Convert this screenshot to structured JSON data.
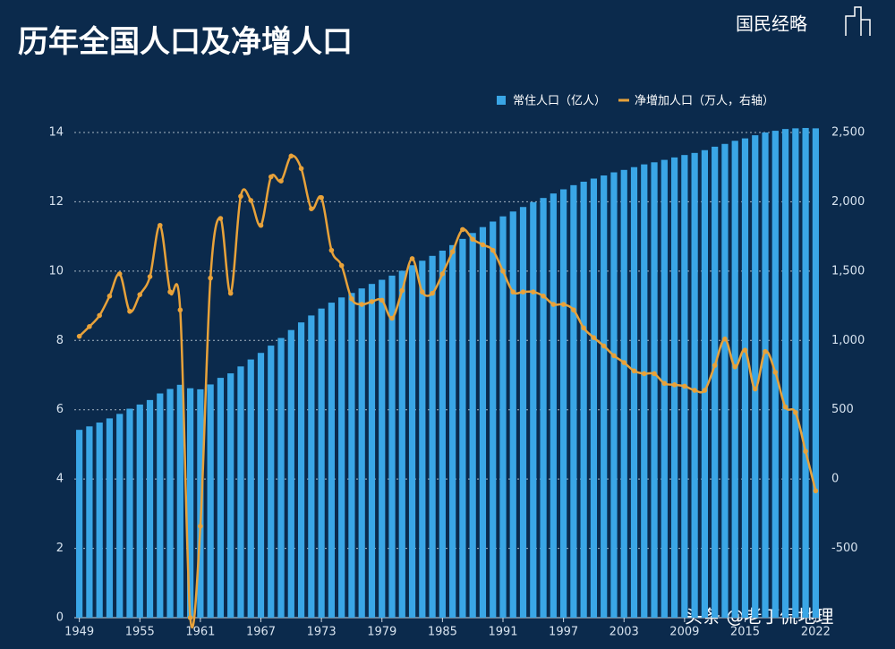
{
  "chart_data": {
    "type": "bar-line",
    "title": "历年全国人口及净增人口",
    "logo": "国民经略",
    "watermark": "头条 @老丁侃地理",
    "categories": [
      "1949",
      null,
      null,
      null,
      null,
      null,
      "1955",
      null,
      null,
      null,
      null,
      null,
      "1961",
      null,
      null,
      null,
      null,
      null,
      "1967",
      null,
      null,
      null,
      null,
      null,
      "1973",
      null,
      null,
      null,
      null,
      null,
      "1979",
      null,
      null,
      null,
      null,
      null,
      "1985",
      null,
      null,
      null,
      null,
      null,
      "1991",
      null,
      null,
      null,
      null,
      null,
      "1997",
      null,
      null,
      null,
      null,
      null,
      "2003",
      null,
      null,
      null,
      null,
      null,
      "2009",
      null,
      null,
      null,
      null,
      null,
      "2015",
      null,
      null,
      null,
      null,
      null,
      null,
      "2022"
    ],
    "series": [
      {
        "name": "常住人口（亿人）",
        "color": "#3aa6e6",
        "kind": "bar",
        "axis": "y",
        "values": [
          5.42,
          5.52,
          5.63,
          5.75,
          5.88,
          6.03,
          6.15,
          6.28,
          6.47,
          6.6,
          6.72,
          6.62,
          6.59,
          6.73,
          6.92,
          7.05,
          7.25,
          7.45,
          7.64,
          7.85,
          8.07,
          8.3,
          8.52,
          8.72,
          8.92,
          9.09,
          9.24,
          9.37,
          9.5,
          9.63,
          9.75,
          9.87,
          10.01,
          10.17,
          10.3,
          10.44,
          10.59,
          10.75,
          10.93,
          11.1,
          11.27,
          11.43,
          11.58,
          11.72,
          11.85,
          11.99,
          12.11,
          12.24,
          12.36,
          12.48,
          12.58,
          12.67,
          12.76,
          12.85,
          12.92,
          13.0,
          13.08,
          13.14,
          13.21,
          13.28,
          13.35,
          13.41,
          13.49,
          13.59,
          13.67,
          13.76,
          13.83,
          13.92,
          14.0,
          14.05,
          14.1,
          14.12,
          14.13,
          14.12
        ]
      },
      {
        "name": "净增加人口（万人，右轴）",
        "color": "#e8a23a",
        "kind": "line",
        "axis": "y2",
        "values": [
          1030,
          1100,
          1180,
          1320,
          1480,
          1210,
          1330,
          1460,
          1830,
          1350,
          1220,
          -1000,
          -340,
          1450,
          1880,
          1340,
          2040,
          2010,
          1830,
          2180,
          2150,
          2330,
          2240,
          1950,
          2030,
          1650,
          1540,
          1300,
          1260,
          1280,
          1290,
          1160,
          1360,
          1590,
          1350,
          1340,
          1480,
          1640,
          1800,
          1730,
          1690,
          1650,
          1500,
          1350,
          1350,
          1350,
          1320,
          1260,
          1260,
          1220,
          1090,
          1020,
          960,
          890,
          840,
          780,
          760,
          760,
          690,
          680,
          670,
          640,
          640,
          820,
          1010,
          810,
          930,
          650,
          920,
          770,
          520,
          480,
          200,
          -85
        ]
      }
    ],
    "ylim": [
      0,
      14
    ],
    "yticks": [
      0,
      2,
      4,
      6,
      8,
      10,
      12,
      14
    ],
    "y2lim": [
      -1000,
      2500
    ],
    "y2ticks": [
      -500,
      0,
      500,
      {
        "value": 1000,
        "label": "1,000"
      },
      {
        "value": 1500,
        "label": "1,500"
      },
      {
        "value": 2000,
        "label": "2,000"
      },
      {
        "value": 2500,
        "label": "2,500"
      }
    ],
    "grid": true,
    "legend": "top-right"
  }
}
